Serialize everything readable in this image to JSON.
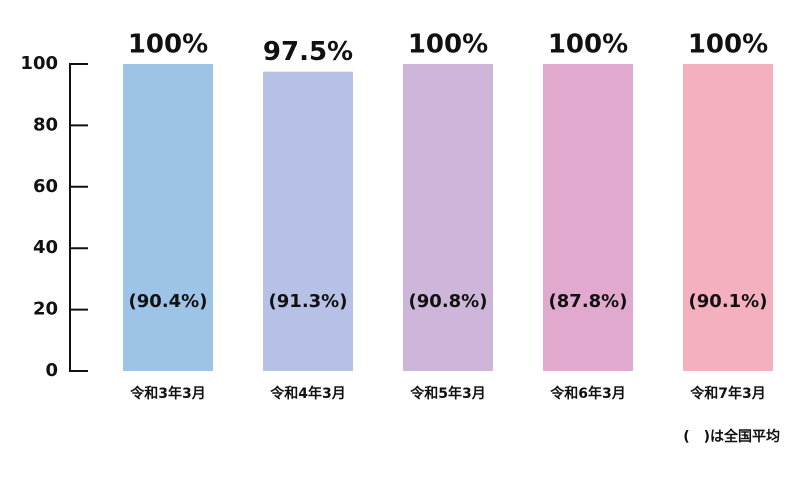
{
  "chart_data": {
    "type": "bar",
    "categories": [
      "令和3年3月",
      "令和4年3月",
      "令和5年3月",
      "令和6年3月",
      "令和7年3月"
    ],
    "values": [
      100,
      97.5,
      100,
      100,
      100
    ],
    "value_labels": [
      "100%",
      "97.5%",
      "100%",
      "100%",
      "100%"
    ],
    "colors": [
      "#9dc3e6",
      "#b7c1e5",
      "#cdb6da",
      "#e2a9cf",
      "#f4b0bf"
    ],
    "average_values": [
      90.4,
      91.3,
      90.8,
      87.8,
      90.1
    ],
    "average_labels": [
      "(90.4%)",
      "(91.3%)",
      "(90.8%)",
      "(87.8%)",
      "(90.1%)"
    ],
    "note": "(　)は全国平均",
    "ylim": [
      0,
      100
    ],
    "yticks": [
      0,
      20,
      40,
      60,
      80,
      100
    ],
    "grid": false
  }
}
